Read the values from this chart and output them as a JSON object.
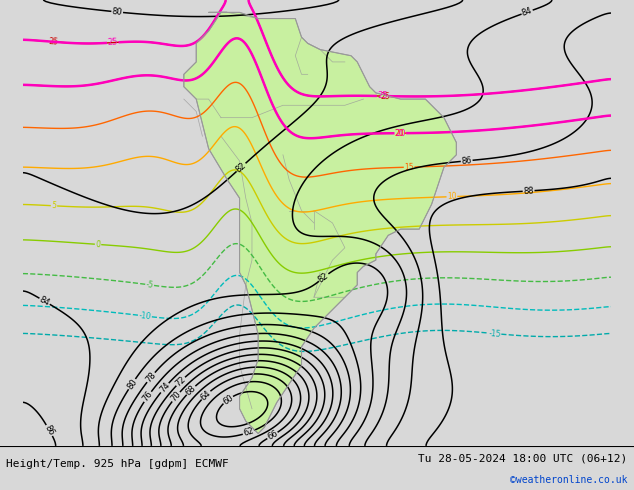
{
  "title_left": "Height/Temp. 925 hPa [gdpm] ECMWF",
  "title_right": "Tu 28-05-2024 18:00 UTC (06+12)",
  "credit": "©weatheronline.co.uk",
  "bg_color": "#d8d8d8",
  "land_color": "#c8f0a0",
  "border_color": "#999999",
  "fig_width": 6.34,
  "fig_height": 4.9,
  "lon_min": -105,
  "lon_max": -10,
  "lat_min": -58,
  "lat_max": 14,
  "temp_levels": [
    -15,
    -10,
    -5,
    0,
    5,
    10,
    15,
    20,
    25
  ],
  "temp_colors": [
    "#00cccc",
    "#00aaaa",
    "#44bb44",
    "#88cc00",
    "#cccc00",
    "#ffaa00",
    "#ff6600",
    "#ff2200",
    "#cc0000"
  ],
  "magenta_levels": [
    20,
    25
  ],
  "magenta_color": "#ff00bb",
  "height_levels": [
    60,
    62,
    64,
    66,
    68,
    70,
    72,
    74,
    76,
    78,
    80,
    82,
    84,
    86,
    88
  ],
  "height_color": "black",
  "label_fontsize": 5.5
}
